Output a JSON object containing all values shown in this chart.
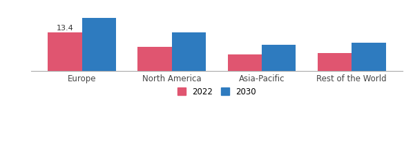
{
  "categories": [
    "Europe",
    "North America",
    "Asia-Pacific",
    "Rest of the World"
  ],
  "values_2022": [
    13.4,
    8.5,
    5.8,
    6.2
  ],
  "values_2030": [
    18.5,
    13.5,
    9.2,
    9.8
  ],
  "color_2022": "#e05570",
  "color_2030": "#2e7bbf",
  "annotation_text": "13.4",
  "annotation_bar": 0,
  "legend_2022": "2022",
  "legend_2030": "2030",
  "ylim": [
    0,
    21
  ],
  "bar_width": 0.38,
  "background_color": "#ffffff",
  "ylabel_fontsize": 6.5,
  "tick_fontsize": 8.5,
  "legend_fontsize": 8.5
}
